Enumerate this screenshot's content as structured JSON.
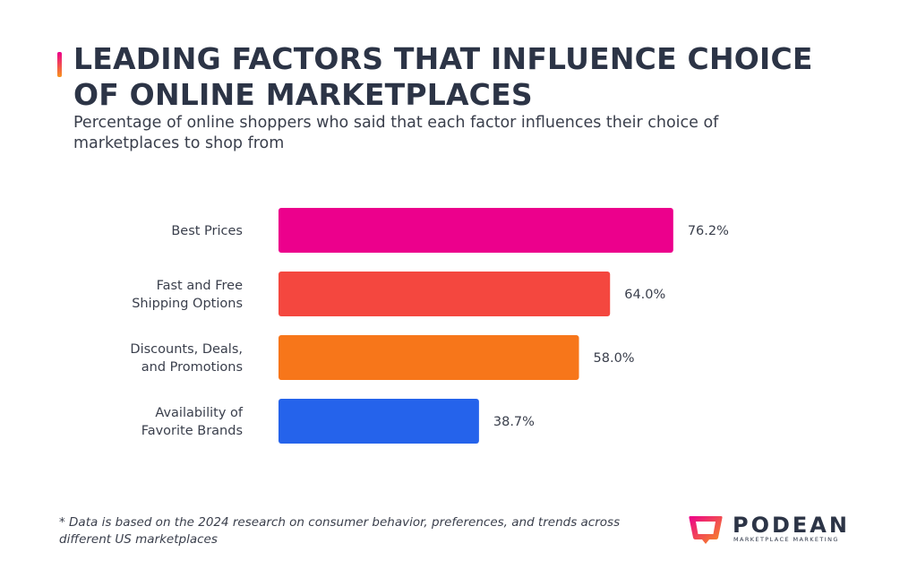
{
  "header": {
    "title": "LEADING FACTORS THAT INFLUENCE CHOICE OF ONLINE MARKETPLACES",
    "subtitle": "Percentage of online shoppers who said that each factor influences their choice of marketplaces to shop from"
  },
  "chart_data": {
    "type": "bar",
    "orientation": "horizontal",
    "categories": [
      [
        "Best Prices"
      ],
      [
        "Fast and Free",
        "Shipping Options"
      ],
      [
        "Discounts, Deals,",
        "and Promotions"
      ],
      [
        "Availability of",
        "Favorite Brands"
      ]
    ],
    "values": [
      76.2,
      64.0,
      58.0,
      38.7
    ],
    "value_labels": [
      "76.2%",
      "64.0%",
      "58.0%",
      "38.7%"
    ],
    "bar_colors": [
      "#ec008c",
      "#f4473f",
      "#f7761a",
      "#2563eb"
    ],
    "unit": "%",
    "xlim": [
      0,
      100
    ],
    "grid": false,
    "legend": "none"
  },
  "footnote": "* Data is based on the 2024 research on consumer behavior, preferences, and trends across different US marketplaces",
  "logo": {
    "name": "PODEAN",
    "tagline": "MARKETPLACE MARKETING",
    "colors": [
      "#ec008c",
      "#f7941d"
    ]
  }
}
